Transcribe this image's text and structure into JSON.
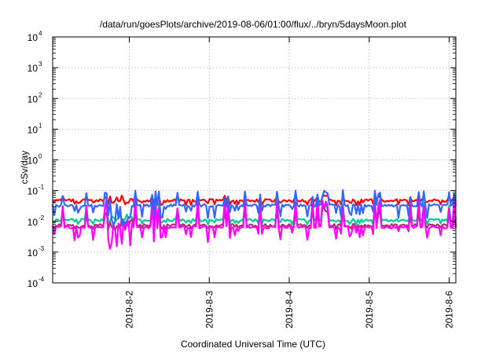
{
  "chart_data": {
    "type": "line",
    "title": "/data/run/goesPlots/archive/2019-08-06/01:00/flux/../bryn/5daysMoon.plot",
    "xlabel": "Coordinated Universal Time (UTC)",
    "ylabel": "cSv/day",
    "yscale": "log",
    "ylim": [
      0.0001,
      10000
    ],
    "ytick_base": "10",
    "ytick_exponents": [
      "-4",
      "-3",
      "-2",
      "-1",
      "0",
      "1",
      "2",
      "3",
      "4"
    ],
    "xlim": [
      "2019-08-01 01:00",
      "2019-08-06 02:00"
    ],
    "xtick_labels": [
      "2019-8-2",
      "2019-8-3",
      "2019-8-4",
      "2019-8-5",
      "2019-8-6"
    ],
    "grid": true,
    "series_colors": [
      "#ff0000",
      "#00cc99",
      "#aa3366",
      "#ff00ff",
      "#3366ff"
    ],
    "series": [
      {
        "color": "#ff0000",
        "baseline": 0.048,
        "spike_max": 0.08,
        "dip_min": 0.03
      },
      {
        "color": "#00cc99",
        "baseline": 0.011,
        "spike_max": 0.05,
        "dip_min": 0.007
      },
      {
        "color": "#aa3366",
        "baseline": 0.0075,
        "spike_max": 0.04,
        "dip_min": 0.005
      },
      {
        "color": "#ff00ff",
        "baseline": 0.0065,
        "spike_max": 0.08,
        "dip_min": 0.001
      },
      {
        "color": "#3366ff",
        "baseline": 0.033,
        "spike_max": 0.13,
        "dip_min": 0.007
      }
    ]
  }
}
